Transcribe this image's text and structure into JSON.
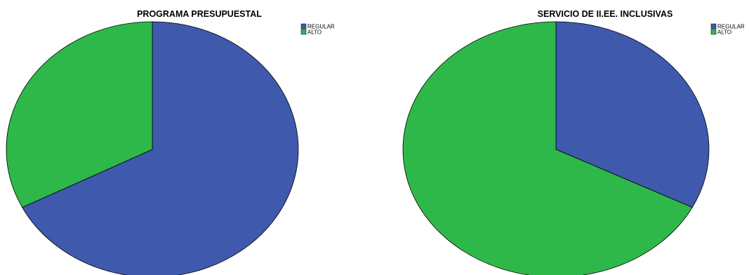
{
  "chart_data": [
    {
      "type": "pie",
      "title": "PROGRAMA PRESUPUESTAL",
      "categories": [
        "REGULAR",
        "ALTO"
      ],
      "values": [
        67.5,
        32.5
      ],
      "colors": [
        "#3f59ac",
        "#2fb84a"
      ],
      "legend": "top-right"
    },
    {
      "type": "pie",
      "title": "SERVICIO DE II.EE. INCLUSIVAS",
      "categories": [
        "REGULAR",
        "ALTO"
      ],
      "values": [
        32.5,
        67.5
      ],
      "colors": [
        "#3f59ac",
        "#2fb84a"
      ],
      "legend": "top-right"
    }
  ]
}
